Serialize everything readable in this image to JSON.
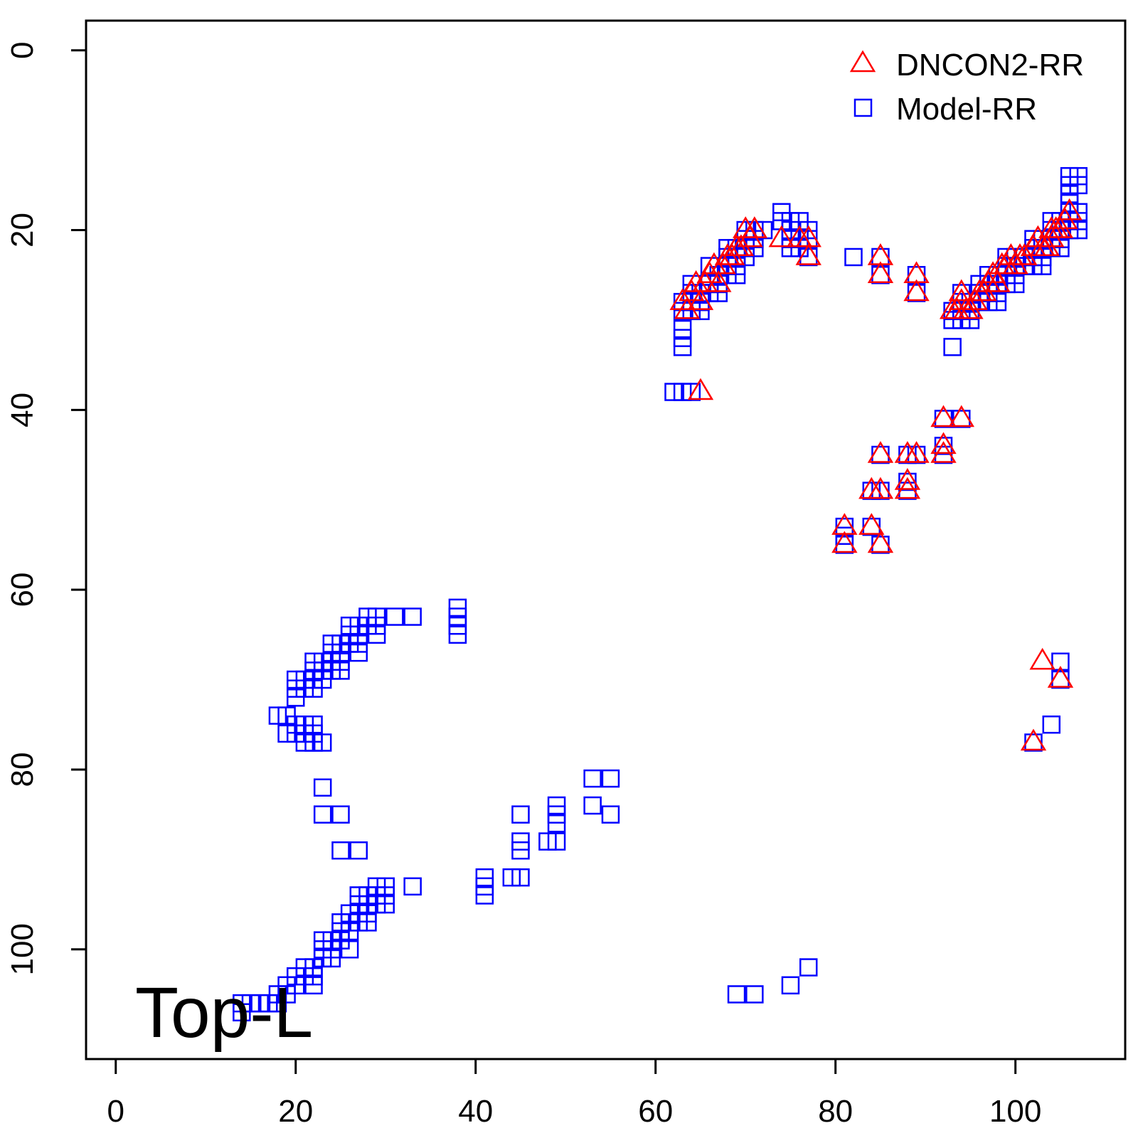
{
  "chart_data": {
    "type": "scatter",
    "title": "",
    "xlabel": "",
    "ylabel": "",
    "xlim": [
      -3.3,
      112.2
    ],
    "ylim": [
      -3.3,
      112.2
    ],
    "y_reversed": true,
    "x_ticks": [
      0,
      20,
      40,
      60,
      80,
      100
    ],
    "y_ticks": [
      0,
      20,
      40,
      60,
      80,
      100
    ],
    "grid": false,
    "legend_position": "top-right",
    "annotation": "Top-L",
    "series": [
      {
        "name": "DNCON2-RR",
        "marker": "triangle",
        "color": "#ff0000",
        "points": [
          [
            63,
            28
          ],
          [
            63.5,
            29
          ],
          [
            64,
            27
          ],
          [
            64.5,
            26
          ],
          [
            65,
            28
          ],
          [
            65.5,
            26
          ],
          [
            66,
            25
          ],
          [
            66.5,
            24
          ],
          [
            67,
            26
          ],
          [
            67.5,
            24
          ],
          [
            68,
            23
          ],
          [
            68.5,
            23
          ],
          [
            69,
            22
          ],
          [
            69.5,
            22
          ],
          [
            70,
            20
          ],
          [
            70.5,
            21
          ],
          [
            71,
            20
          ],
          [
            74,
            21
          ],
          [
            76,
            21
          ],
          [
            77,
            21
          ],
          [
            77,
            23
          ],
          [
            85,
            23
          ],
          [
            85,
            25
          ],
          [
            89,
            25
          ],
          [
            89,
            27
          ],
          [
            93,
            29
          ],
          [
            93.5,
            29
          ],
          [
            94,
            28
          ],
          [
            94,
            27
          ],
          [
            94.5,
            29
          ],
          [
            95,
            29
          ],
          [
            95.5,
            28
          ],
          [
            96,
            27
          ],
          [
            96.5,
            27
          ],
          [
            97,
            26
          ],
          [
            97.5,
            25
          ],
          [
            98,
            26
          ],
          [
            98.5,
            24
          ],
          [
            99,
            24
          ],
          [
            99.5,
            23
          ],
          [
            100,
            24
          ],
          [
            100.5,
            23
          ],
          [
            101,
            23
          ],
          [
            102,
            22
          ],
          [
            102.5,
            21
          ],
          [
            103,
            22
          ],
          [
            103.5,
            22
          ],
          [
            104,
            21
          ],
          [
            104,
            20
          ],
          [
            104.5,
            20
          ],
          [
            105,
            20
          ],
          [
            105.5,
            19
          ],
          [
            106,
            18
          ],
          [
            65,
            38
          ],
          [
            92,
            41
          ],
          [
            94,
            41
          ],
          [
            85,
            45
          ],
          [
            88,
            45
          ],
          [
            89,
            45
          ],
          [
            92,
            44
          ],
          [
            92,
            45
          ],
          [
            88,
            48
          ],
          [
            88,
            49
          ],
          [
            84,
            49
          ],
          [
            85,
            49
          ],
          [
            81,
            53
          ],
          [
            81,
            55
          ],
          [
            84,
            53
          ],
          [
            85,
            55
          ],
          [
            103,
            68
          ],
          [
            105,
            70
          ],
          [
            102,
            77
          ]
        ]
      },
      {
        "name": "Model-RR",
        "marker": "square",
        "color": "#0000ff",
        "points": [
          [
            14,
            106
          ],
          [
            14,
            107
          ],
          [
            15,
            106
          ],
          [
            16,
            106
          ],
          [
            17,
            106
          ],
          [
            18,
            105
          ],
          [
            18,
            106
          ],
          [
            19,
            104
          ],
          [
            19,
            105
          ],
          [
            20,
            103
          ],
          [
            20,
            104
          ],
          [
            21,
            102
          ],
          [
            21,
            103
          ],
          [
            22,
            102
          ],
          [
            22,
            103
          ],
          [
            22,
            104
          ],
          [
            23,
            99
          ],
          [
            23,
            100
          ],
          [
            23,
            101
          ],
          [
            24,
            99
          ],
          [
            24,
            100
          ],
          [
            24,
            101
          ],
          [
            25,
            97
          ],
          [
            25,
            98
          ],
          [
            25,
            99
          ],
          [
            26,
            96
          ],
          [
            26,
            97
          ],
          [
            26,
            98
          ],
          [
            26,
            100
          ],
          [
            27,
            94
          ],
          [
            27,
            95
          ],
          [
            27,
            96
          ],
          [
            27,
            97
          ],
          [
            28,
            94
          ],
          [
            28,
            95
          ],
          [
            28,
            96
          ],
          [
            28,
            97
          ],
          [
            29,
            93
          ],
          [
            29,
            94
          ],
          [
            29,
            95
          ],
          [
            30,
            93
          ],
          [
            30,
            94
          ],
          [
            30,
            95
          ],
          [
            33,
            93
          ],
          [
            18,
            74
          ],
          [
            19,
            74
          ],
          [
            19,
            76
          ],
          [
            20,
            75
          ],
          [
            20,
            76
          ],
          [
            21,
            75
          ],
          [
            21,
            76
          ],
          [
            21,
            77
          ],
          [
            22,
            75
          ],
          [
            22,
            76
          ],
          [
            22,
            77
          ],
          [
            23,
            77
          ],
          [
            20,
            70
          ],
          [
            20,
            71
          ],
          [
            20,
            72
          ],
          [
            21,
            70
          ],
          [
            21,
            71
          ],
          [
            22,
            68
          ],
          [
            22,
            69
          ],
          [
            22,
            70
          ],
          [
            22,
            71
          ],
          [
            23,
            68
          ],
          [
            23,
            69
          ],
          [
            23,
            70
          ],
          [
            24,
            66
          ],
          [
            24,
            67
          ],
          [
            24,
            68
          ],
          [
            24,
            69
          ],
          [
            25,
            66
          ],
          [
            25,
            67
          ],
          [
            25,
            68
          ],
          [
            25,
            69
          ],
          [
            26,
            64
          ],
          [
            26,
            65
          ],
          [
            26,
            66
          ],
          [
            27,
            64
          ],
          [
            27,
            65
          ],
          [
            27,
            66
          ],
          [
            27,
            67
          ],
          [
            28,
            63
          ],
          [
            28,
            64
          ],
          [
            29,
            63
          ],
          [
            29,
            64
          ],
          [
            29,
            65
          ],
          [
            31,
            63
          ],
          [
            33,
            63
          ],
          [
            38,
            62
          ],
          [
            38,
            63
          ],
          [
            38,
            64
          ],
          [
            38,
            65
          ],
          [
            23,
            82
          ],
          [
            23,
            85
          ],
          [
            25,
            85
          ],
          [
            25,
            89
          ],
          [
            27,
            89
          ],
          [
            41,
            92
          ],
          [
            41,
            93
          ],
          [
            41,
            94
          ],
          [
            44,
            92
          ],
          [
            45,
            92
          ],
          [
            45,
            85
          ],
          [
            45,
            88
          ],
          [
            45,
            89
          ],
          [
            48,
            88
          ],
          [
            49,
            84
          ],
          [
            49,
            85
          ],
          [
            49,
            86
          ],
          [
            49,
            88
          ],
          [
            53,
            81
          ],
          [
            53,
            84
          ],
          [
            55,
            81
          ],
          [
            55,
            85
          ],
          [
            69,
            105
          ],
          [
            71,
            105
          ],
          [
            75,
            104
          ],
          [
            77,
            102
          ],
          [
            62,
            38
          ],
          [
            63,
            38
          ],
          [
            64,
            38
          ],
          [
            63,
            31
          ],
          [
            63,
            32
          ],
          [
            63,
            33
          ],
          [
            63,
            28
          ],
          [
            63,
            29
          ],
          [
            64,
            28
          ],
          [
            64,
            29
          ],
          [
            64,
            27
          ],
          [
            64,
            26
          ],
          [
            65,
            27
          ],
          [
            65,
            28
          ],
          [
            65,
            29
          ],
          [
            66,
            24
          ],
          [
            66,
            26
          ],
          [
            66,
            27
          ],
          [
            67,
            25
          ],
          [
            67,
            26
          ],
          [
            67,
            27
          ],
          [
            68,
            22
          ],
          [
            68,
            23
          ],
          [
            68,
            24
          ],
          [
            68,
            25
          ],
          [
            69,
            22
          ],
          [
            69,
            23
          ],
          [
            69,
            24
          ],
          [
            69,
            25
          ],
          [
            70,
            20
          ],
          [
            70,
            21
          ],
          [
            70,
            22
          ],
          [
            70,
            23
          ],
          [
            71,
            20
          ],
          [
            71,
            21
          ],
          [
            71,
            22
          ],
          [
            72,
            20
          ],
          [
            74,
            18
          ],
          [
            74,
            19
          ],
          [
            75,
            19
          ],
          [
            75,
            20
          ],
          [
            75,
            21
          ],
          [
            75,
            22
          ],
          [
            76,
            19
          ],
          [
            76,
            21
          ],
          [
            76,
            22
          ],
          [
            77,
            20
          ],
          [
            77,
            21
          ],
          [
            77,
            23
          ],
          [
            82,
            23
          ],
          [
            85,
            23
          ],
          [
            85,
            25
          ],
          [
            89,
            25
          ],
          [
            89,
            27
          ],
          [
            93,
            29
          ],
          [
            93,
            30
          ],
          [
            93,
            33
          ],
          [
            94,
            27
          ],
          [
            94,
            28
          ],
          [
            94,
            29
          ],
          [
            94,
            30
          ],
          [
            95,
            28
          ],
          [
            95,
            29
          ],
          [
            95,
            30
          ],
          [
            96,
            26
          ],
          [
            96,
            27
          ],
          [
            96,
            28
          ],
          [
            97,
            25
          ],
          [
            97,
            26
          ],
          [
            97,
            27
          ],
          [
            97,
            28
          ],
          [
            98,
            25
          ],
          [
            98,
            26
          ],
          [
            98,
            27
          ],
          [
            98,
            28
          ],
          [
            99,
            23
          ],
          [
            99,
            24
          ],
          [
            99,
            25
          ],
          [
            99,
            26
          ],
          [
            100,
            23
          ],
          [
            100,
            24
          ],
          [
            100,
            25
          ],
          [
            100,
            26
          ],
          [
            101,
            23
          ],
          [
            101,
            24
          ],
          [
            102,
            21
          ],
          [
            102,
            22
          ],
          [
            102,
            23
          ],
          [
            102,
            24
          ],
          [
            103,
            21
          ],
          [
            103,
            22
          ],
          [
            103,
            23
          ],
          [
            103,
            24
          ],
          [
            104,
            19
          ],
          [
            104,
            20
          ],
          [
            104,
            21
          ],
          [
            104,
            22
          ],
          [
            105,
            19
          ],
          [
            105,
            20
          ],
          [
            105,
            21
          ],
          [
            105,
            22
          ],
          [
            106,
            14
          ],
          [
            106,
            15
          ],
          [
            106,
            16
          ],
          [
            106,
            17
          ],
          [
            106,
            18
          ],
          [
            106,
            19
          ],
          [
            106,
            20
          ],
          [
            107,
            14
          ],
          [
            107,
            15
          ],
          [
            107,
            18
          ],
          [
            107,
            19
          ],
          [
            107,
            20
          ],
          [
            92,
            41
          ],
          [
            94,
            41
          ],
          [
            85,
            45
          ],
          [
            88,
            45
          ],
          [
            89,
            45
          ],
          [
            92,
            44
          ],
          [
            92,
            45
          ],
          [
            84,
            49
          ],
          [
            85,
            49
          ],
          [
            88,
            48
          ],
          [
            88,
            49
          ],
          [
            81,
            53
          ],
          [
            81,
            54
          ],
          [
            81,
            55
          ],
          [
            84,
            53
          ],
          [
            85,
            55
          ],
          [
            105,
            68
          ],
          [
            105,
            70
          ],
          [
            104,
            75
          ],
          [
            102,
            77
          ]
        ]
      }
    ]
  }
}
